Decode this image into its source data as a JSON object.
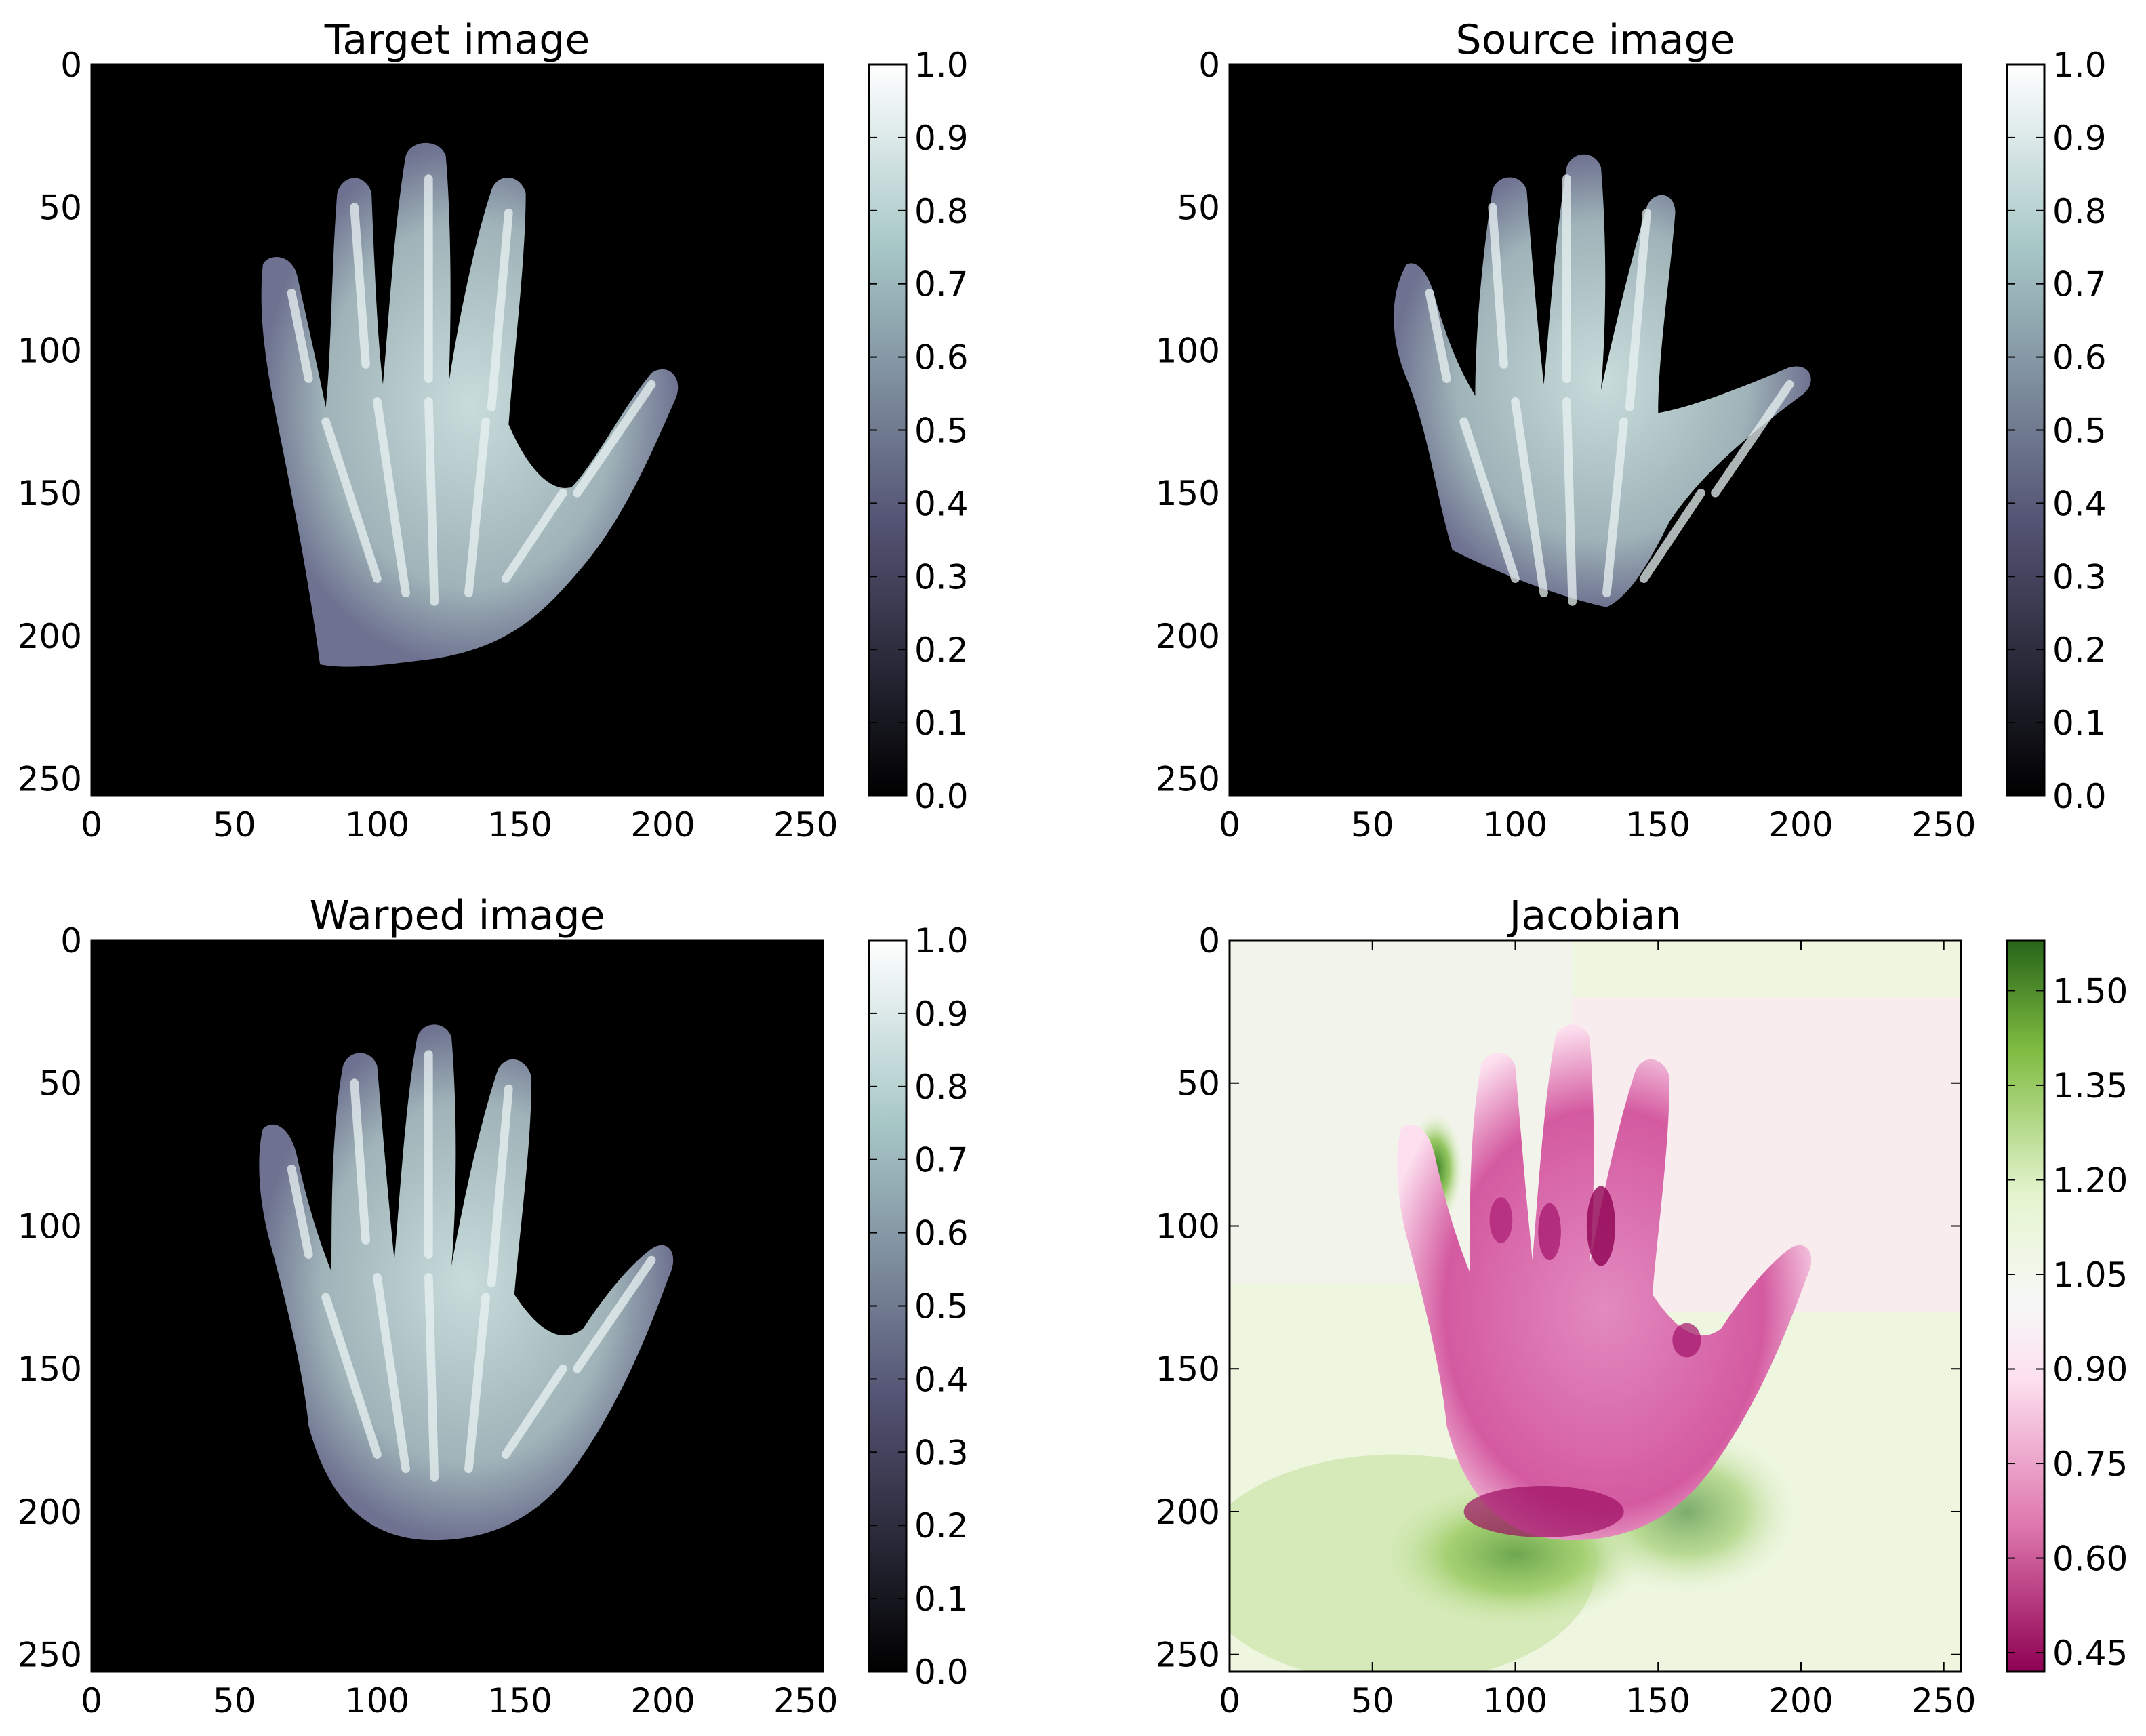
{
  "chart_data": [
    {
      "type": "heatmap",
      "title": "Target image",
      "content": "hand X-ray",
      "x_ticks": [
        "0",
        "50",
        "100",
        "150",
        "200",
        "250"
      ],
      "y_ticks": [
        "0",
        "50",
        "100",
        "150",
        "200",
        "250"
      ],
      "xlim": [
        0,
        256
      ],
      "ylim": [
        256,
        0
      ],
      "colormap": "bone",
      "colorbar": {
        "min": 0.0,
        "max": 1.0,
        "ticks": [
          "0.0",
          "0.1",
          "0.2",
          "0.3",
          "0.4",
          "0.5",
          "0.6",
          "0.7",
          "0.8",
          "0.9",
          "1.0"
        ]
      }
    },
    {
      "type": "heatmap",
      "title": "Source image",
      "content": "hand X-ray",
      "x_ticks": [
        "0",
        "50",
        "100",
        "150",
        "200",
        "250"
      ],
      "y_ticks": [
        "0",
        "50",
        "100",
        "150",
        "200",
        "250"
      ],
      "xlim": [
        0,
        256
      ],
      "ylim": [
        256,
        0
      ],
      "colormap": "bone",
      "colorbar": {
        "min": 0.0,
        "max": 1.0,
        "ticks": [
          "0.0",
          "0.1",
          "0.2",
          "0.3",
          "0.4",
          "0.5",
          "0.6",
          "0.7",
          "0.8",
          "0.9",
          "1.0"
        ]
      }
    },
    {
      "type": "heatmap",
      "title": "Warped image",
      "content": "hand X-ray",
      "x_ticks": [
        "0",
        "50",
        "100",
        "150",
        "200",
        "250"
      ],
      "y_ticks": [
        "0",
        "50",
        "100",
        "150",
        "200",
        "250"
      ],
      "xlim": [
        0,
        256
      ],
      "ylim": [
        256,
        0
      ],
      "colormap": "bone",
      "colorbar": {
        "min": 0.0,
        "max": 1.0,
        "ticks": [
          "0.0",
          "0.1",
          "0.2",
          "0.3",
          "0.4",
          "0.5",
          "0.6",
          "0.7",
          "0.8",
          "0.9",
          "1.0"
        ]
      }
    },
    {
      "type": "heatmap",
      "title": "Jacobian",
      "content": "jacobian determinant field",
      "x_ticks": [
        "0",
        "50",
        "100",
        "150",
        "200",
        "250"
      ],
      "y_ticks": [
        "0",
        "50",
        "100",
        "150",
        "200",
        "250"
      ],
      "xlim": [
        0,
        256
      ],
      "ylim": [
        256,
        0
      ],
      "colormap": "PiYG",
      "colorbar": {
        "min": 0.42,
        "max": 1.58,
        "ticks": [
          "0.45",
          "0.60",
          "0.75",
          "0.90",
          "1.05",
          "1.20",
          "1.35",
          "1.50"
        ]
      }
    }
  ]
}
